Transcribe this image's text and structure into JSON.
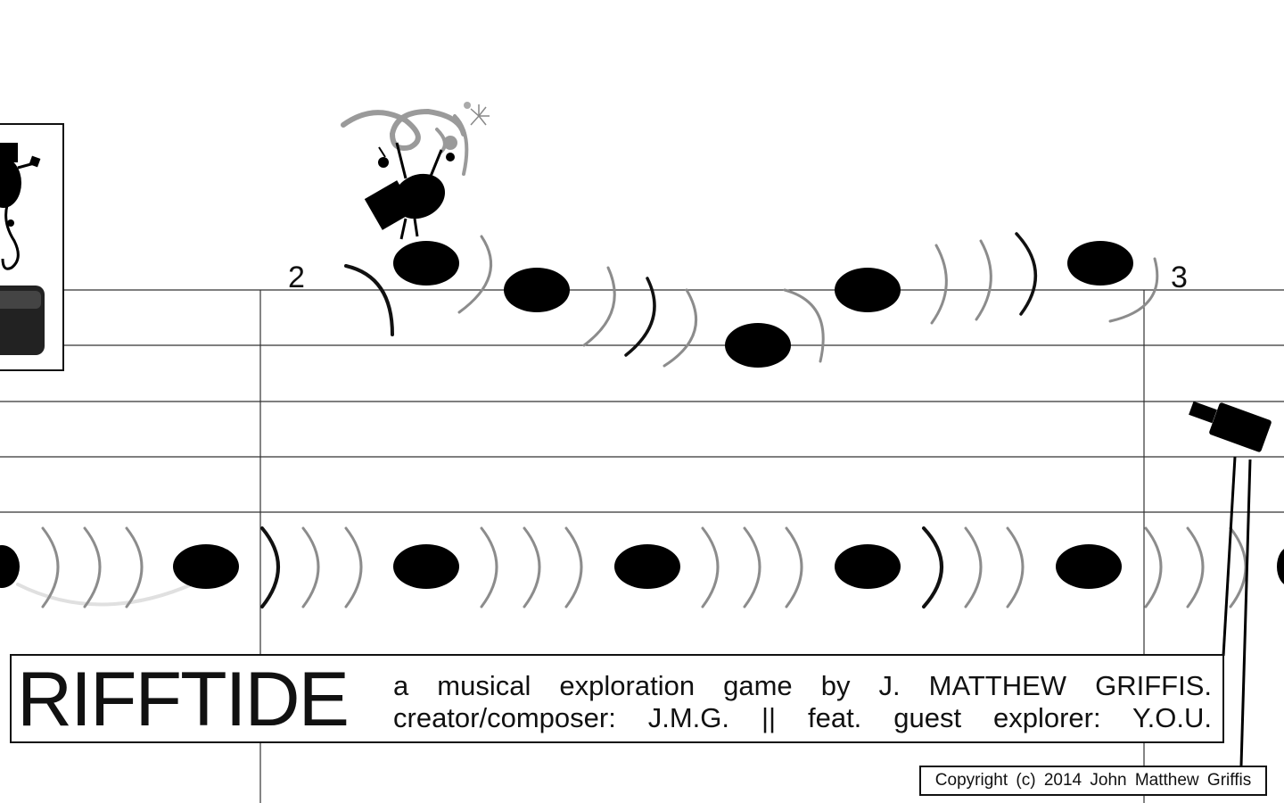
{
  "game": {
    "title": "RIFFTIDE",
    "tagline": "a musical exploration game by J. MATTHEW GRIFFIS.",
    "credits": "creator/composer: J.M.G. || feat. guest explorer: Y.O.U.",
    "copyright": "Copyright (c) 2014 John Matthew Griffis"
  },
  "measures": [
    {
      "number": "2"
    },
    {
      "number": "3"
    }
  ],
  "icons": {
    "player": "bug-musician-icon",
    "treble": "treble-clef-icon",
    "spotlight": "spotlight-icon",
    "card": "character-card-icon"
  },
  "colors": {
    "ink": "#111111",
    "ripple": "#8c8c8c",
    "paper": "#ffffff"
  }
}
